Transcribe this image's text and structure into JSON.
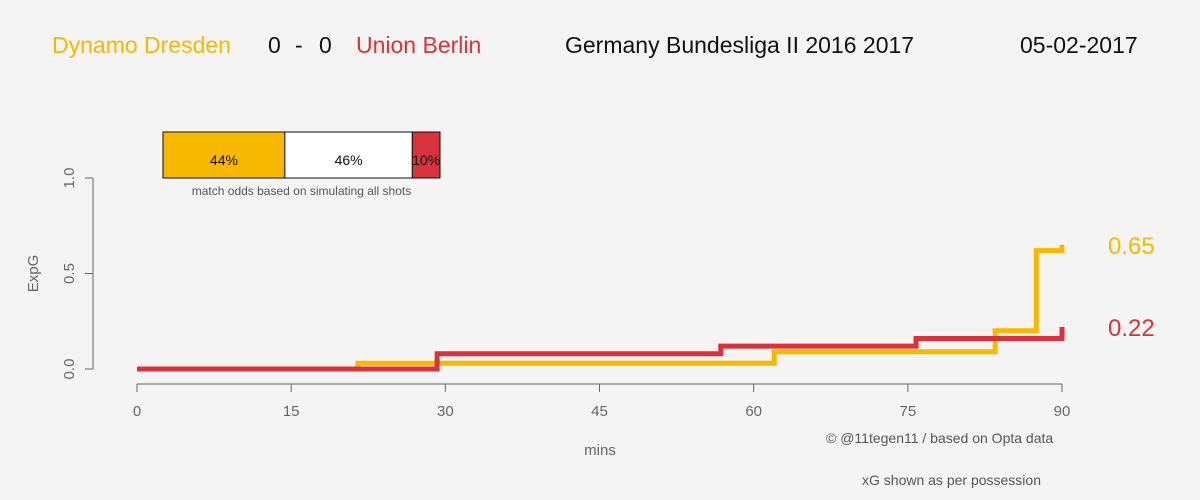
{
  "header": {
    "home_team": "Dynamo Dresden",
    "home_score": "0",
    "dash": "-",
    "away_score": "0",
    "away_team": "Union Berlin",
    "competition": "Germany Bundesliga II 2016 2017",
    "date": "05-02-2017"
  },
  "colors": {
    "home": "#f9b800",
    "away": "#d8333a",
    "text": "#666666"
  },
  "odds": {
    "home_pct": 44,
    "draw_pct": 46,
    "away_pct": 10,
    "home_label": "44%",
    "draw_label": "46%",
    "away_label": "10%",
    "caption": "match odds based on simulating all shots"
  },
  "chart_data": {
    "type": "line",
    "step": true,
    "xlabel": "mins",
    "ylabel": "ExpG",
    "xlim": [
      0,
      90
    ],
    "ylim": [
      0,
      1
    ],
    "xticks": [
      0,
      15,
      30,
      45,
      60,
      75,
      90
    ],
    "yticks": [
      0.0,
      0.5,
      1.0
    ],
    "ytick_labels": [
      "0.0",
      "0.5",
      "1.0"
    ],
    "series": [
      {
        "name": "Dynamo Dresden",
        "color": "#f9b800",
        "x": [
          0,
          21,
          21.5,
          53.5,
          62,
          83.5,
          87.5,
          90
        ],
        "y": [
          0.0,
          0.0,
          0.03,
          0.03,
          0.09,
          0.2,
          0.62,
          0.65
        ],
        "final_label": "0.65"
      },
      {
        "name": "Union Berlin",
        "color": "#d8333a",
        "x": [
          0,
          12.3,
          29.2,
          56.8,
          75.8,
          90
        ],
        "y": [
          0.0,
          0.0,
          0.08,
          0.12,
          0.16,
          0.22
        ],
        "final_label": "0.22"
      }
    ]
  },
  "credits": {
    "source": "© @11tegen11   /   based on Opta data",
    "note": "xG shown as per possession"
  }
}
